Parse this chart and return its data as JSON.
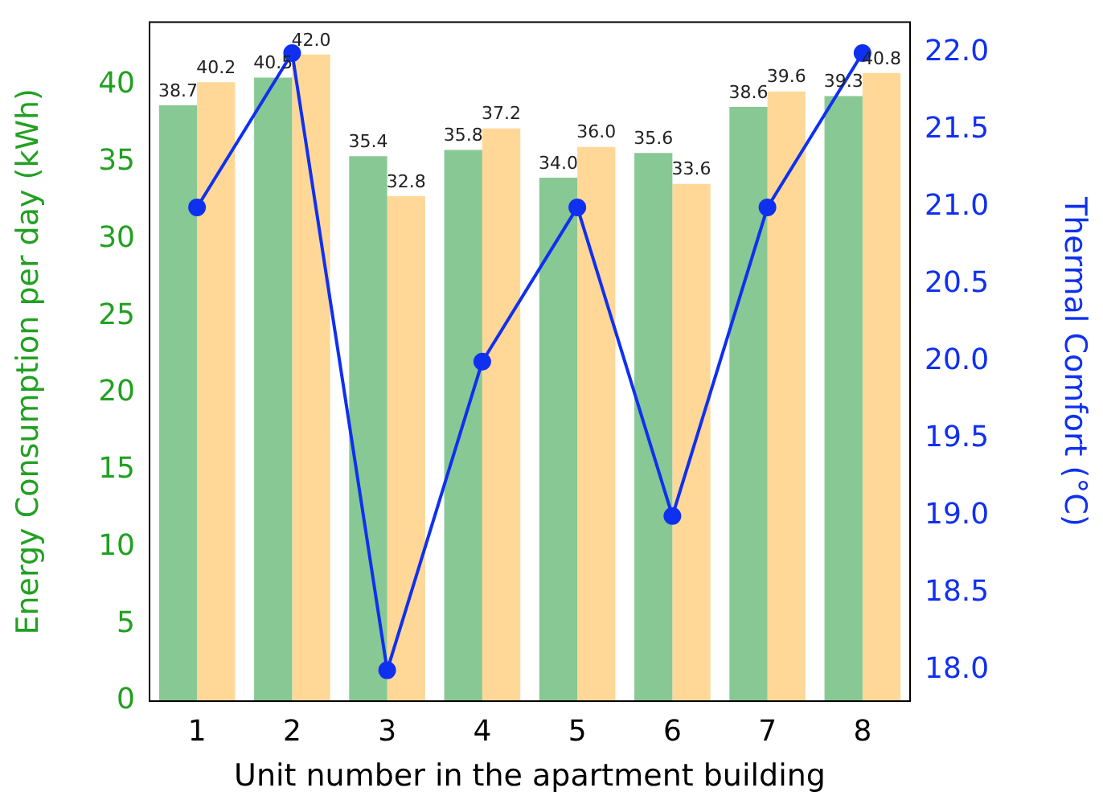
{
  "chart_data": {
    "type": "bar",
    "xlabel": "Unit number in the apartment building",
    "ylabel": "Energy Consumption per day (kWh)",
    "y2label": "Thermal Comfort (°C)",
    "categories": [
      "1",
      "2",
      "3",
      "4",
      "5",
      "6",
      "7",
      "8"
    ],
    "series": [
      {
        "color": "#88c894",
        "values": [
          38.7,
          40.5,
          35.4,
          35.8,
          34.0,
          35.6,
          38.6,
          39.3
        ],
        "value_labels": [
          "38.7",
          "40.5",
          "35.4",
          "35.8",
          "34.0",
          "35.6",
          "38.6",
          "39.3"
        ]
      },
      {
        "color": "#ffd898",
        "values": [
          40.2,
          42.0,
          32.8,
          37.2,
          36.0,
          33.6,
          39.6,
          40.8
        ],
        "value_labels": [
          "40.2",
          "42.0",
          "32.8",
          "37.2",
          "36.0",
          "33.6",
          "39.6",
          "40.8"
        ]
      },
      {
        "type": "line",
        "axis": "y2",
        "color": "#1030f0",
        "values": [
          21.0,
          22.0,
          18.0,
          20.0,
          21.0,
          19.0,
          21.0,
          22.0
        ]
      }
    ],
    "ylim": [
      0,
      44.1
    ],
    "yticks": [
      0,
      5,
      10,
      15,
      20,
      25,
      30,
      35,
      40
    ],
    "y2lim": [
      17.8,
      22.2
    ],
    "y2ticks": [
      {
        "value": 18,
        "label": "18.0"
      },
      {
        "value": 18.5,
        "label": "18.5"
      },
      {
        "value": 19,
        "label": "19.0"
      },
      {
        "value": 19.5,
        "label": "19.5"
      },
      {
        "value": 20,
        "label": "20.0"
      },
      {
        "value": 20.5,
        "label": "20.5"
      },
      {
        "value": 21,
        "label": "21.0"
      },
      {
        "value": 21.5,
        "label": "21.5"
      },
      {
        "value": 22,
        "label": "22.0"
      }
    ],
    "marker": "circle",
    "line_style": "solid",
    "grid": false,
    "legend": false
  }
}
